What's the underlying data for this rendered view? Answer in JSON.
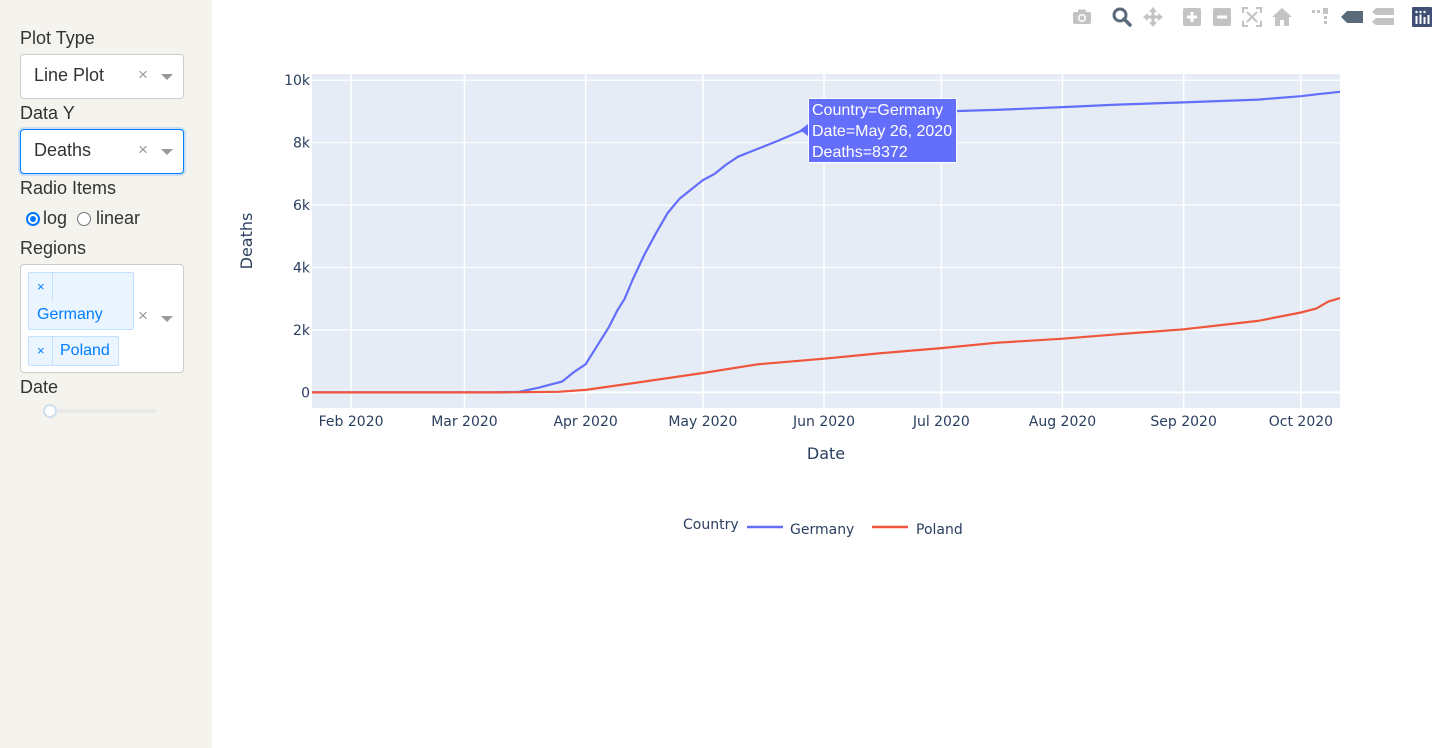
{
  "sidebar": {
    "plot_type_label": "Plot Type",
    "plot_type_value": "Line Plot",
    "data_y_label": "Data Y",
    "data_y_value": "Deaths",
    "radio_label": "Radio Items",
    "radio_options": [
      "log",
      "linear"
    ],
    "radio_selected": "log",
    "regions_label": "Regions",
    "regions": [
      "Germany",
      "Poland"
    ],
    "date_label": "Date",
    "date_slider_position": 0,
    "clear_glyph": "×",
    "tag_remove_glyph": "×"
  },
  "modebar": {
    "icons": [
      "camera-icon",
      "zoom-icon",
      "pan-icon",
      "zoom-in-icon",
      "zoom-out-icon",
      "autoscale-icon",
      "reset-axes-icon",
      "spike-lines-icon",
      "hover-closest-icon",
      "hover-compare-icon",
      "plotly-logo-icon"
    ]
  },
  "hover": {
    "line1": "Country=Germany",
    "line2": "Date=May 26, 2020",
    "line3": "Deaths=8372"
  },
  "colors": {
    "germany": "#636efa",
    "poland": "#ef553b",
    "plot_bg": "#e5ecf6",
    "sidebar_bg": "#f4f3ee"
  },
  "chart_data": {
    "type": "line",
    "xlabel": "Date",
    "ylabel": "Deaths",
    "ylim": [
      -500,
      10200
    ],
    "yticks": [
      0,
      2000,
      4000,
      6000,
      8000,
      10000
    ],
    "ytick_labels": [
      "0",
      "2k",
      "4k",
      "6k",
      "8k",
      "10k"
    ],
    "xlim": [
      "2020-01-22",
      "2020-10-11"
    ],
    "xtick_labels": [
      "Feb 2020",
      "Mar 2020",
      "Apr 2020",
      "May 2020",
      "Jun 2020",
      "Jul 2020",
      "Aug 2020",
      "Sep 2020",
      "Oct 2020"
    ],
    "xtick_dates": [
      "2020-02-01",
      "2020-03-01",
      "2020-04-01",
      "2020-05-01",
      "2020-06-01",
      "2020-07-01",
      "2020-08-01",
      "2020-09-01",
      "2020-10-01"
    ],
    "legend_title": "Country",
    "legend_position": "bottom-center",
    "grid": true,
    "series": [
      {
        "name": "Germany",
        "x": [
          "2020-01-22",
          "2020-03-08",
          "2020-03-15",
          "2020-03-20",
          "2020-03-23",
          "2020-03-26",
          "2020-03-29",
          "2020-04-01",
          "2020-04-03",
          "2020-04-05",
          "2020-04-07",
          "2020-04-09",
          "2020-04-11",
          "2020-04-13",
          "2020-04-16",
          "2020-04-19",
          "2020-04-22",
          "2020-04-25",
          "2020-04-28",
          "2020-05-01",
          "2020-05-04",
          "2020-05-07",
          "2020-05-10",
          "2020-05-13",
          "2020-05-16",
          "2020-05-20",
          "2020-05-26",
          "2020-06-01",
          "2020-06-15",
          "2020-07-01",
          "2020-07-15",
          "2020-08-01",
          "2020-08-15",
          "2020-09-01",
          "2020-09-20",
          "2020-10-01",
          "2020-10-05",
          "2020-10-11"
        ],
        "values": [
          0,
          0,
          20,
          150,
          250,
          350,
          650,
          900,
          1300,
          1700,
          2100,
          2600,
          3000,
          3600,
          4400,
          5100,
          5750,
          6200,
          6500,
          6800,
          7000,
          7300,
          7550,
          7700,
          7850,
          8050,
          8372,
          8600,
          8850,
          9000,
          9050,
          9140,
          9220,
          9290,
          9380,
          9490,
          9550,
          9630
        ]
      },
      {
        "name": "Poland",
        "x": [
          "2020-01-22",
          "2020-03-10",
          "2020-03-25",
          "2020-04-01",
          "2020-04-15",
          "2020-05-01",
          "2020-05-15",
          "2020-06-01",
          "2020-06-15",
          "2020-07-01",
          "2020-07-15",
          "2020-08-01",
          "2020-08-15",
          "2020-09-01",
          "2020-09-20",
          "2020-10-01",
          "2020-10-05",
          "2020-10-08",
          "2020-10-11"
        ],
        "values": [
          0,
          0,
          20,
          80,
          330,
          620,
          900,
          1080,
          1250,
          1420,
          1590,
          1720,
          1860,
          2020,
          2290,
          2560,
          2690,
          2910,
          3020
        ]
      }
    ]
  }
}
